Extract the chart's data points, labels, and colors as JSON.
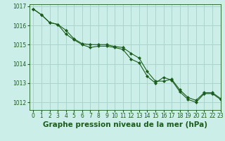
{
  "title": "Graphe pression niveau de la mer (hPa)",
  "background_color": "#cceee8",
  "grid_color": "#aad4cc",
  "line_color": "#1a5c1a",
  "xlim": [
    -0.5,
    23
  ],
  "ylim": [
    1011.6,
    1017.1
  ],
  "yticks": [
    1012,
    1013,
    1014,
    1015,
    1016,
    1017
  ],
  "xticks": [
    0,
    1,
    2,
    3,
    4,
    5,
    6,
    7,
    8,
    9,
    10,
    11,
    12,
    13,
    14,
    15,
    16,
    17,
    18,
    19,
    20,
    21,
    22,
    23
  ],
  "series1": [
    1016.85,
    1016.55,
    1016.15,
    1016.05,
    1015.55,
    1015.25,
    1015.0,
    1014.85,
    1014.92,
    1014.92,
    1014.85,
    1014.75,
    1014.25,
    1014.05,
    1013.35,
    1013.0,
    1013.3,
    1013.15,
    1012.55,
    1012.15,
    1012.0,
    1012.45,
    1012.45,
    1012.15
  ],
  "series2": [
    1016.85,
    1016.55,
    1016.15,
    1016.05,
    1015.75,
    1015.3,
    1015.05,
    1015.0,
    1015.0,
    1015.0,
    1014.9,
    1014.85,
    1014.55,
    1014.3,
    1013.6,
    1013.1,
    1013.1,
    1013.2,
    1012.65,
    1012.25,
    1012.1,
    1012.5,
    1012.5,
    1012.2
  ],
  "title_fontsize": 7.5,
  "tick_fontsize": 5.5
}
